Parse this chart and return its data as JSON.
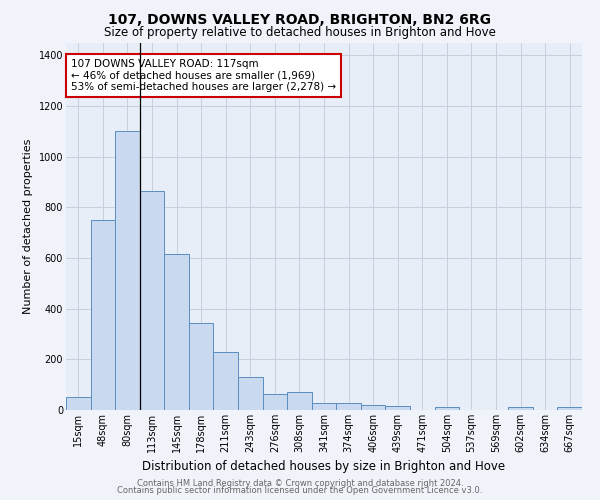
{
  "title": "107, DOWNS VALLEY ROAD, BRIGHTON, BN2 6RG",
  "subtitle": "Size of property relative to detached houses in Brighton and Hove",
  "xlabel": "Distribution of detached houses by size in Brighton and Hove",
  "ylabel": "Number of detached properties",
  "footnote1": "Contains HM Land Registry data © Crown copyright and database right 2024.",
  "footnote2": "Contains public sector information licensed under the Open Government Licence v3.0.",
  "bar_labels": [
    "15sqm",
    "48sqm",
    "80sqm",
    "113sqm",
    "145sqm",
    "178sqm",
    "211sqm",
    "243sqm",
    "276sqm",
    "308sqm",
    "341sqm",
    "374sqm",
    "406sqm",
    "439sqm",
    "471sqm",
    "504sqm",
    "537sqm",
    "569sqm",
    "602sqm",
    "634sqm",
    "667sqm"
  ],
  "bar_values": [
    50,
    750,
    1100,
    865,
    615,
    345,
    228,
    130,
    65,
    70,
    28,
    28,
    20,
    15,
    0,
    12,
    0,
    0,
    12,
    0,
    12
  ],
  "bar_color": "#c9d9ef",
  "bar_edge_color": "#5b8dc0",
  "grid_color": "#c8d0dc",
  "background_color": "#f0f4fa",
  "plot_bg_color": "#e8eef7",
  "annotation_text": "107 DOWNS VALLEY ROAD: 117sqm\n← 46% of detached houses are smaller (1,969)\n53% of semi-detached houses are larger (2,278) →",
  "annotation_box_color": "#ffffff",
  "annotation_border_color": "#cc0000",
  "vline_color": "#000000",
  "ylim": [
    0,
    1450
  ],
  "yticks": [
    0,
    200,
    400,
    600,
    800,
    1000,
    1200,
    1400
  ],
  "title_fontsize": 10,
  "subtitle_fontsize": 8.5,
  "ylabel_fontsize": 8,
  "xlabel_fontsize": 8.5,
  "tick_fontsize": 7,
  "annot_fontsize": 7.5,
  "footnote_fontsize": 6
}
